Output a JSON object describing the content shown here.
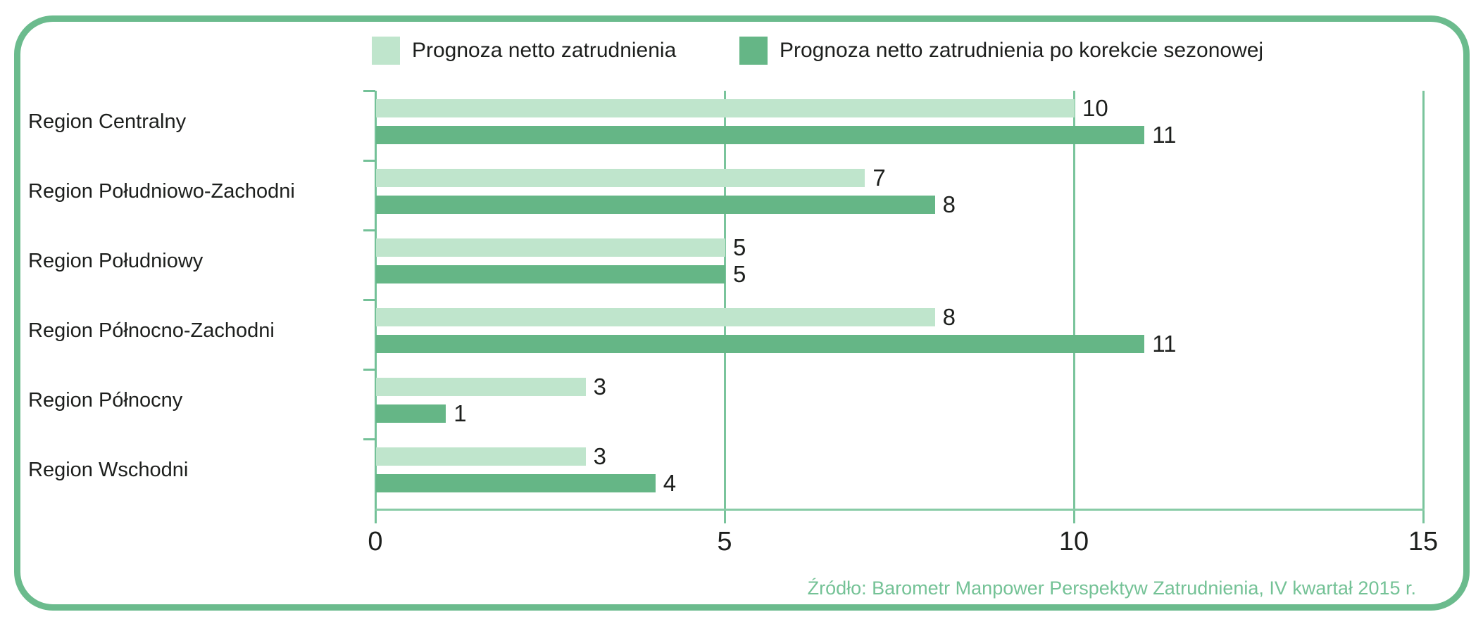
{
  "chart_data": {
    "type": "bar",
    "orientation": "horizontal",
    "title": "",
    "categories": [
      "Region Centralny",
      "Region Południowo-Zachodni",
      "Region Południowy",
      "Region Północno-Zachodni",
      "Region Północny",
      "Region Wschodni"
    ],
    "series": [
      {
        "name": "Prognoza netto zatrudnienia",
        "color": "#bfe5cc",
        "values": [
          10,
          7,
          5,
          8,
          3,
          3
        ]
      },
      {
        "name": "Prognoza netto zatrudnienia po korekcie sezonowej",
        "color": "#65b686",
        "values": [
          11,
          8,
          5,
          11,
          1,
          4
        ]
      }
    ],
    "xlim": [
      0,
      15
    ],
    "xticks": [
      0,
      5,
      10,
      15
    ],
    "grid": "vertical-gridlines-at-xticks",
    "legend_position": "top",
    "value_labels": "end-of-bar",
    "source": "Źródło: Barometr Manpower Perspektyw Zatrudnienia, IV kwartał 2015 r."
  },
  "palette": {
    "frame_border": "#6bbb8d",
    "axis_green": "#74c198",
    "gridline_green": "#7ac49c",
    "baseline_green": "#88cba6",
    "text_dark": "#1d1f1d",
    "source_green": "#74c296",
    "background": "#ffffff"
  }
}
